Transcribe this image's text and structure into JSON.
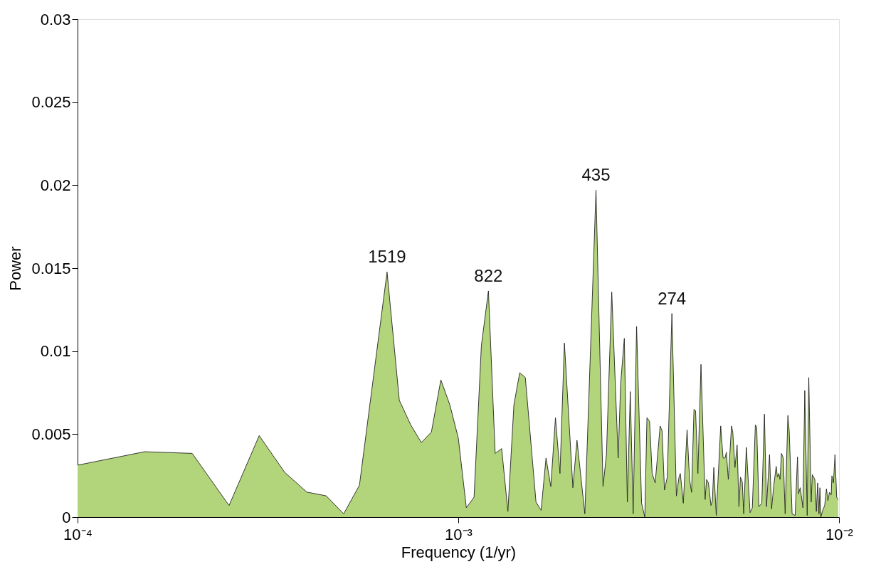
{
  "chart_data": {
    "type": "area",
    "xlabel": "Frequency (1/yr)",
    "ylabel": "Power",
    "log": "x",
    "color": "#b2d47a",
    "xlim": [
      0.0001,
      0.01
    ],
    "xticks": [
      {
        "value": 0.0001,
        "label": "10⁻⁴"
      },
      {
        "value": 0.001,
        "label": "10⁻³"
      },
      {
        "value": 0.01,
        "label": "10⁻²"
      }
    ],
    "ylim": [
      0,
      0.03
    ],
    "yticks": [
      0,
      0.005,
      0.01,
      0.015,
      0.02,
      0.025,
      0.03
    ],
    "x": [
      0.0001,
      0.00015,
      0.0002,
      0.00025,
      0.0003,
      0.00035,
      0.0004,
      0.00045,
      0.0005,
      0.00055,
      0.00065,
      0.0007,
      0.00075,
      0.0008,
      0.00085,
      0.0009,
      0.00095,
      0.001,
      0.00105,
      0.0011,
      0.00115,
      0.0012,
      0.00125,
      0.0013,
      0.00135,
      0.0014,
      0.00145,
      0.0015,
      0.0016,
      0.00165,
      0.0017,
      0.00175,
      0.0018,
      0.00185,
      0.0019,
      0.002,
      0.00205,
      0.00215,
      0.0023,
      0.0024,
      0.00245,
      0.00253,
      0.00263,
      0.00267,
      0.00273,
      0.00278,
      0.00283,
      0.00288,
      0.00294,
      0.00303,
      0.00309,
      0.00313,
      0.00318,
      0.00323,
      0.00329,
      0.00339,
      0.00343,
      0.00348,
      0.00354,
      0.00364,
      0.00374,
      0.0038,
      0.00383,
      0.0039,
      0.00399,
      0.00405,
      0.0041,
      0.00416,
      0.0042,
      0.00426,
      0.00434,
      0.00445,
      0.00449,
      0.00454,
      0.00461,
      0.00465,
      0.00469,
      0.00476,
      0.00489,
      0.00496,
      0.00502,
      0.00506,
      0.00512,
      0.00522,
      0.00526,
      0.00533,
      0.0054,
      0.00546,
      0.00551,
      0.00557,
      0.00562,
      0.00571,
      0.00584,
      0.00592,
      0.00603,
      0.00608,
      0.00616,
      0.00627,
      0.00637,
      0.00645,
      0.00657,
      0.00665,
      0.00674,
      0.00684,
      0.00689,
      0.00695,
      0.007,
      0.00706,
      0.00714,
      0.00722,
      0.00734,
      0.0074,
      0.00753,
      0.00767,
      0.00778,
      0.00783,
      0.00791,
      0.00804,
      0.00813,
      0.00825,
      0.00833,
      0.00845,
      0.00851,
      0.00864,
      0.00872,
      0.00879,
      0.00886,
      0.00891,
      0.00896,
      0.00904,
      0.00917,
      0.00927,
      0.00935,
      0.00944,
      0.00954,
      0.00958,
      0.00967,
      0.00976,
      0.00986,
      0.00995
    ],
    "values": [
      0.00313,
      0.00394,
      0.00384,
      0.0007,
      0.00491,
      0.0027,
      0.00151,
      0.00128,
      0.0002,
      0.00192,
      0.01477,
      0.00704,
      0.00556,
      0.00449,
      0.00513,
      0.00827,
      0.00677,
      0.00477,
      0.00056,
      0.0012,
      0.01034,
      0.01363,
      0.00384,
      0.00413,
      0.00034,
      0.00677,
      0.0087,
      0.00841,
      0.00091,
      0.00041,
      0.00356,
      0.00184,
      0.00599,
      0.00263,
      0.01049,
      0.00177,
      0.00463,
      0.0002,
      0.0197,
      0.00184,
      0.00377,
      0.01356,
      0.00356,
      0.00806,
      0.01077,
      0.00091,
      0.00756,
      0.0002,
      0.01149,
      0.00084,
      0.0,
      0.00599,
      0.00577,
      0.00263,
      0.00206,
      0.00549,
      0.0052,
      0.00163,
      0.00241,
      0.01227,
      0.00127,
      0.00241,
      0.00263,
      0.00084,
      0.00527,
      0.00227,
      0.00149,
      0.00649,
      0.00641,
      0.00263,
      0.0092,
      0.00106,
      0.00227,
      0.00206,
      0.0007,
      0.00099,
      0.00299,
      0.0001,
      0.00549,
      0.00356,
      0.00356,
      0.00391,
      0.00227,
      0.00549,
      0.00513,
      0.00299,
      0.00434,
      0.00063,
      0.00241,
      0.00213,
      0.0002,
      0.0042,
      0.00027,
      0.00056,
      0.00556,
      0.00541,
      0.00063,
      0.00084,
      0.0062,
      0.00063,
      0.00377,
      0.00049,
      0.00191,
      0.00306,
      0.00241,
      0.00263,
      0.00227,
      0.00384,
      0.00356,
      0.0002,
      0.00613,
      0.0052,
      0.0002,
      0.0001,
      0.00363,
      0.00141,
      0.00177,
      0.00056,
      0.00763,
      0.0001,
      0.00841,
      0.00091,
      0.00256,
      0.00227,
      0.00034,
      0.00206,
      0.0002,
      0.00177,
      0.0,
      0.00034,
      0.0007,
      0.0017,
      0.00099,
      0.00149,
      0.00134,
      0.00249,
      0.00206,
      0.00377,
      0.0012,
      0.00106
    ],
    "annotations": [
      {
        "text": "1519",
        "x": 0.00065,
        "y": 0.01477
      },
      {
        "text": "822",
        "x": 0.0012,
        "y": 0.01363
      },
      {
        "text": "435",
        "x": 0.0023,
        "y": 0.0197
      },
      {
        "text": "274",
        "x": 0.00364,
        "y": 0.01227
      }
    ]
  }
}
